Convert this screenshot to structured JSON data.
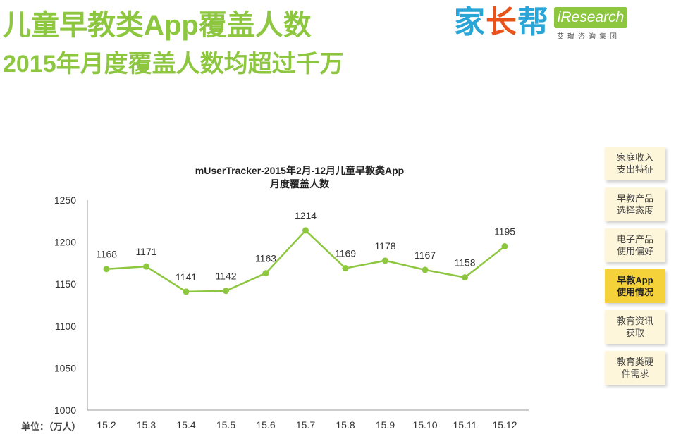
{
  "header": {
    "title": "儿童早教类App覆盖人数",
    "subtitle": "2015年月度覆盖人数均超过千万"
  },
  "logos": {
    "jiazhangbang": [
      "家",
      "长",
      "帮"
    ],
    "iresearch": "iResearch",
    "iresearch_sub": "艾瑞咨询集团"
  },
  "nav": {
    "items": [
      {
        "label": "家庭收入\n支出特征",
        "active": false
      },
      {
        "label": "早教产品\n选择态度",
        "active": false
      },
      {
        "label": "电子产品\n使用偏好",
        "active": false
      },
      {
        "label": "早教App\n使用情况",
        "active": true
      },
      {
        "label": "教育资讯\n获取",
        "active": false
      },
      {
        "label": "教育类硬\n件需求",
        "active": false
      }
    ]
  },
  "colors": {
    "accent": "#8dc63f",
    "active_nav": "#f5d23a",
    "nav_bg": "#fdf6da"
  },
  "chart_data": {
    "type": "line",
    "title": [
      "mUserTracker-2015年2月-12月儿童早教类App",
      "月度覆盖人数"
    ],
    "unit_label": "单位：（万人）",
    "categories": [
      "15.2",
      "15.3",
      "15.4",
      "15.5",
      "15.6",
      "15.7",
      "15.8",
      "15.9",
      "15.10",
      "15.11",
      "15.12"
    ],
    "values": [
      1168,
      1171,
      1141,
      1142,
      1163,
      1214,
      1169,
      1178,
      1167,
      1158,
      1195
    ],
    "yticks": [
      1000,
      1050,
      1100,
      1150,
      1200,
      1250
    ],
    "ylim": [
      1000,
      1250
    ],
    "grid": false,
    "line_color": "#8dc63f"
  }
}
